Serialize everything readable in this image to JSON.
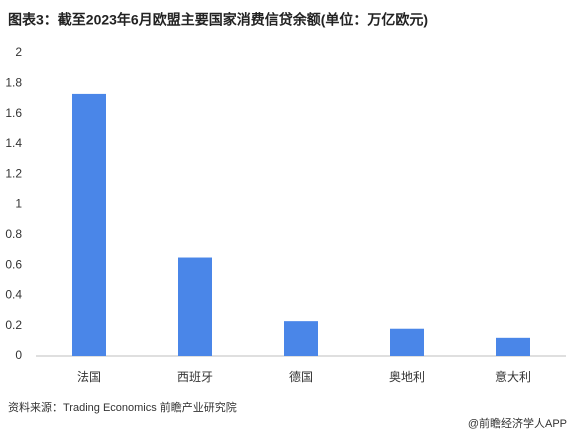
{
  "chart_data": {
    "type": "bar",
    "title": "图表3：截至2023年6月欧盟主要国家消费信贷余额(单位：万亿欧元)",
    "categories": [
      "法国",
      "西班牙",
      "德国",
      "奥地利",
      "意大利"
    ],
    "values": [
      1.73,
      0.65,
      0.23,
      0.18,
      0.12
    ],
    "color": "#4a86e8",
    "ylim": [
      0,
      2
    ],
    "yticks": [
      0,
      0.2,
      0.4,
      0.6,
      0.8,
      1,
      1.2,
      1.4,
      1.6,
      1.8,
      2
    ],
    "grid": false,
    "source": "资料来源：Trading Economics 前瞻产业研究院",
    "footer": "@前瞻经济学人APP"
  }
}
